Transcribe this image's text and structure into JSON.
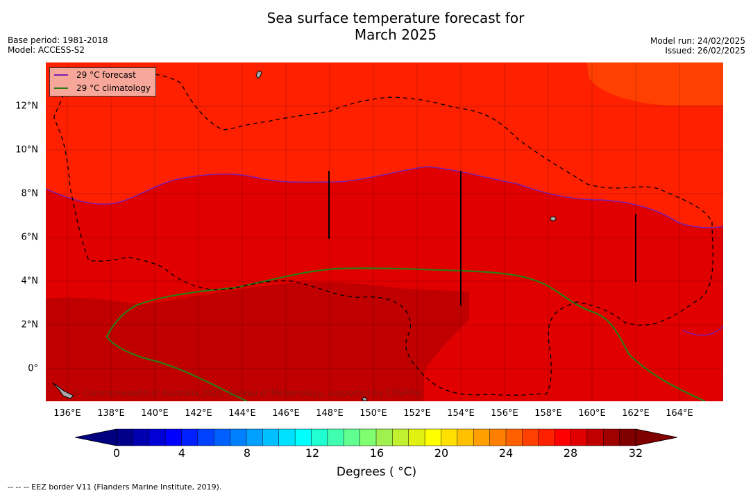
{
  "title_line1": "Sea surface temperature forecast for",
  "title_line2": "March 2025",
  "meta": {
    "base_period": "Base period: 1981-2018",
    "model": "Model: ACCESS-S2",
    "model_run": "Model run: 24/02/2025",
    "issued": "Issued: 26/02/2025"
  },
  "legend": {
    "forecast_label": "29 °C  forecast",
    "climatology_label": "29 °C  climatology",
    "forecast_color": "#7a1fb0",
    "climatology_color": "#2e7d14"
  },
  "x_ticks": [
    "136°E",
    "138°E",
    "140°E",
    "142°E",
    "144°E",
    "146°E",
    "148°E",
    "150°E",
    "152°E",
    "154°E",
    "156°E",
    "158°E",
    "160°E",
    "162°E",
    "164°E"
  ],
  "y_ticks": [
    "12°N",
    "10°N",
    "8°N",
    "6°N",
    "4°N",
    "2°N",
    "0°"
  ],
  "copyright": "© Commonwealth of Australia 2025, Bureau of Meteorology, supported by COSPPac",
  "colorbar": {
    "ticks": [
      "0",
      "4",
      "8",
      "12",
      "16",
      "20",
      "24",
      "28",
      "32"
    ],
    "label": "Degrees ( °C)",
    "range": [
      0,
      32
    ],
    "colors": [
      "#00008b",
      "#0000b0",
      "#0000d6",
      "#0000ff",
      "#0020ff",
      "#0040ff",
      "#0060ff",
      "#0080ff",
      "#00a0ff",
      "#00c0ff",
      "#00e0ff",
      "#00ffff",
      "#20ffd0",
      "#40ffb0",
      "#60ff90",
      "#80ff70",
      "#a0f050",
      "#c0f030",
      "#e0f010",
      "#ffff00",
      "#ffe000",
      "#ffc000",
      "#ffa000",
      "#ff8000",
      "#ff6000",
      "#ff4000",
      "#ff2000",
      "#ff0000",
      "#e00000",
      "#c00000",
      "#a00000",
      "#800000"
    ]
  },
  "eez_note": "--  --  -- EEZ border V11 (Flanders Marine Institute, 2019).",
  "map": {
    "lon_range": [
      135,
      166
    ],
    "lat_range": [
      -1.5,
      14
    ],
    "bands": [
      {
        "range": "28–29 °C",
        "color": "#ff2000"
      },
      {
        "range": "29–30 °C",
        "color": "#e00000"
      },
      {
        "range": "30–31 °C",
        "color": "#c00000"
      },
      {
        "range": "27–28 °C",
        "color": "#ff4000"
      }
    ]
  }
}
